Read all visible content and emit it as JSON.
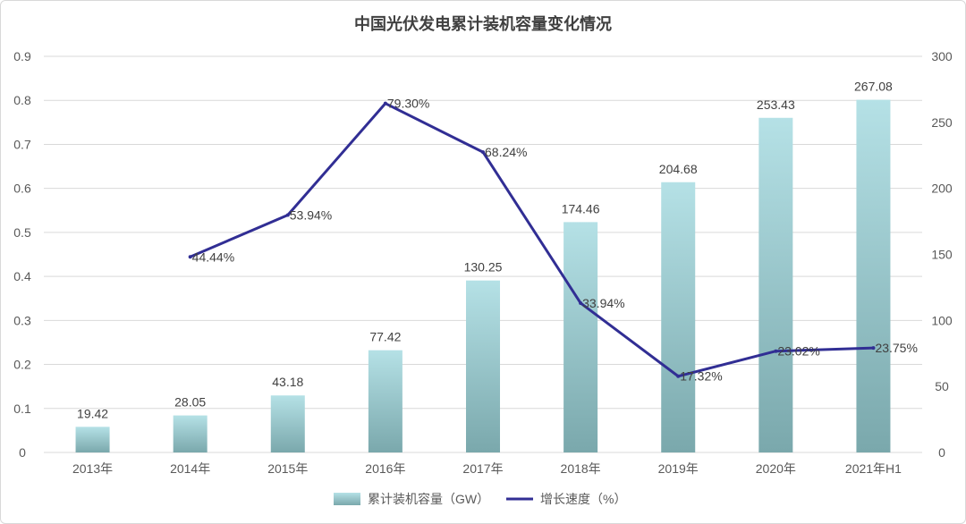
{
  "chart_data": {
    "type": "bar+line",
    "title": "中国光伏发电累计装机容量变化情况",
    "categories": [
      "2013年",
      "2014年",
      "2015年",
      "2016年",
      "2017年",
      "2018年",
      "2019年",
      "2020年",
      "2021年H1"
    ],
    "series": [
      {
        "name": "累计装机容量（GW）",
        "type": "bar",
        "axis": "right",
        "values": [
          19.42,
          28.05,
          43.18,
          77.42,
          130.25,
          174.46,
          204.68,
          253.43,
          267.08
        ],
        "labels": [
          "19.42",
          "28.05",
          "43.18",
          "77.42",
          "130.25",
          "174.46",
          "204.68",
          "253.43",
          "267.08"
        ]
      },
      {
        "name": "增长速度（%）",
        "type": "line",
        "axis": "left",
        "values": [
          null,
          0.4444,
          0.5394,
          0.793,
          0.6824,
          0.3394,
          0.1732,
          0.2302,
          0.2375
        ],
        "labels": [
          "",
          "44.44%",
          "53.94%",
          "79.30%",
          "68.24%",
          "33.94%",
          "17.32%",
          "23.02%",
          "23.75%"
        ]
      }
    ],
    "left_axis": {
      "ylim": [
        0,
        0.9
      ],
      "ticks": [
        "0",
        "0.1",
        "0.2",
        "0.3",
        "0.4",
        "0.5",
        "0.6",
        "0.7",
        "0.8",
        "0.9"
      ]
    },
    "right_axis": {
      "ylim": [
        0,
        300
      ],
      "ticks": [
        "0",
        "50",
        "100",
        "150",
        "200",
        "250",
        "300"
      ]
    },
    "grid": true,
    "legend": "bottom-center",
    "colors": {
      "bar_top": "#b5e1e6",
      "bar_bottom": "#7aa8ac",
      "line": "#312e94",
      "grid": "#d9d9d9",
      "axis_text": "#595959",
      "label_text": "#404040"
    }
  }
}
